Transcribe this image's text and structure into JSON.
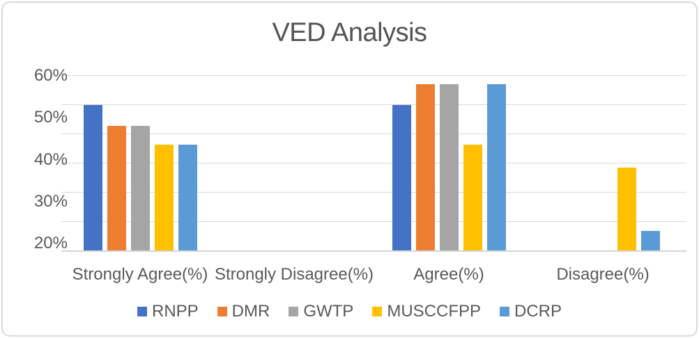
{
  "chart": {
    "title": "VED Analysis"
  },
  "chart_data": {
    "type": "bar",
    "title": "VED Analysis",
    "categories": [
      "Strongly Agree(%)",
      "Strongly Disagree(%)",
      "Agree(%)",
      "Disagree(%)"
    ],
    "series": [
      {
        "name": "RNPP",
        "color": "#4472C4",
        "values": [
          53,
          0,
          53,
          0
        ]
      },
      {
        "name": "DMR",
        "color": "#ED7D31",
        "values": [
          48,
          0,
          58,
          0
        ]
      },
      {
        "name": "GWTP",
        "color": "#A5A5A5",
        "values": [
          48,
          0,
          58,
          0
        ]
      },
      {
        "name": "MUSCCFPP",
        "color": "#FFC000",
        "values": [
          43.5,
          0,
          43.5,
          38
        ]
      },
      {
        "name": "DCRP",
        "color": "#5B9BD5",
        "values": [
          43.5,
          0,
          58,
          23
        ]
      }
    ],
    "xlabel": "",
    "ylabel": "",
    "y_ticks": [
      "60%",
      "50%",
      "40%",
      "30%",
      "20%"
    ],
    "ylim": [
      18,
      62
    ],
    "y_major_unit": 10,
    "grid": true,
    "legend_position": "bottom",
    "value_format": "percent",
    "style": {
      "text_color": "#595959",
      "title_color": "#545454",
      "gridline_color": "#D9D9D9",
      "axis_line_color": "#D3D3D3",
      "border_color": "#D9D9D9",
      "background": "#FFFFFF"
    }
  }
}
